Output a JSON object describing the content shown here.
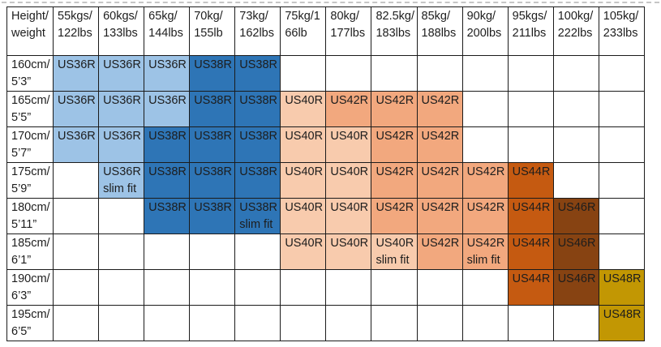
{
  "size_chart": {
    "corner": [
      "Height/",
      "weight"
    ],
    "weight_headers": [
      [
        "55kgs/",
        "122lbs"
      ],
      [
        "60kgs/",
        "133lbs"
      ],
      [
        "65kg/",
        "144lbs"
      ],
      [
        "70kg/",
        "155lb"
      ],
      [
        "73kg/",
        "162lbs"
      ],
      [
        "75kg/1",
        "66lb"
      ],
      [
        "80kg/",
        "177lbs"
      ],
      [
        "82.5kg/",
        "183lbs"
      ],
      [
        "85kg/",
        "188lbs"
      ],
      [
        "90kg/",
        "200lbs"
      ],
      [
        "95kgs/",
        "211lbs"
      ],
      [
        "100kg/",
        "222lbs"
      ],
      [
        "105kg/",
        "233lbs"
      ]
    ],
    "rows": [
      {
        "height": [
          "160cm/",
          "5’3”"
        ],
        "cells": [
          "US36R",
          "US36R",
          "US36R",
          "US38R",
          "US38R",
          null,
          null,
          null,
          null,
          null,
          null,
          null,
          null
        ]
      },
      {
        "height": [
          "165cm/",
          "5’5”"
        ],
        "cells": [
          "US36R",
          "US36R",
          "US36R",
          "US38R",
          "US38R",
          "US40R",
          "US42R",
          "US42R",
          "US42R",
          null,
          null,
          null,
          null
        ]
      },
      {
        "height": [
          "170cm/",
          "5’7”"
        ],
        "cells": [
          "US36R",
          "US36R",
          "US38R",
          "US38R",
          "US38R",
          "US40R",
          "US40R",
          "US42R",
          "US42R",
          null,
          null,
          null,
          null
        ]
      },
      {
        "height": [
          "175cm/",
          "5’9”"
        ],
        "cells": [
          null,
          {
            "size": "US36R",
            "note": "slim fit"
          },
          "US38R",
          "US38R",
          "US38R",
          "US40R",
          "US40R",
          "US42R",
          "US42R",
          "US42R",
          "US44R",
          null,
          null
        ]
      },
      {
        "height": [
          "180cm/",
          "5’11”"
        ],
        "cells": [
          null,
          null,
          "US38R",
          "US38R",
          {
            "size": "US38R",
            "note": "slim fit"
          },
          "US40R",
          "US40R",
          "US42R",
          "US42R",
          "US42R",
          "US44R",
          "US46R",
          null
        ]
      },
      {
        "height": [
          "185cm/",
          "6’1”"
        ],
        "cells": [
          null,
          null,
          null,
          null,
          null,
          "US40R",
          "US40R",
          {
            "size": "US40R",
            "note": "slim fit"
          },
          "US42R",
          {
            "size": "US42R",
            "note": "slim fit"
          },
          "US44R",
          "US46R",
          null
        ]
      },
      {
        "height": [
          "190cm/",
          "6’3”"
        ],
        "cells": [
          null,
          null,
          null,
          null,
          null,
          null,
          null,
          null,
          null,
          null,
          "US44R",
          "US46R",
          "US48R"
        ]
      },
      {
        "height": [
          "195cm/",
          "6’5”"
        ],
        "cells": [
          null,
          null,
          null,
          null,
          null,
          null,
          null,
          null,
          null,
          null,
          null,
          null,
          "US48R"
        ]
      }
    ],
    "size_colors": {
      "US36R": "#9DC3E6",
      "US38R": "#2E75B6",
      "US40R": "#F8CBAD",
      "US42R": "#F2A87E",
      "US44R": "#C55A11",
      "US46R": "#874312",
      "US48R": "#C29703"
    }
  }
}
